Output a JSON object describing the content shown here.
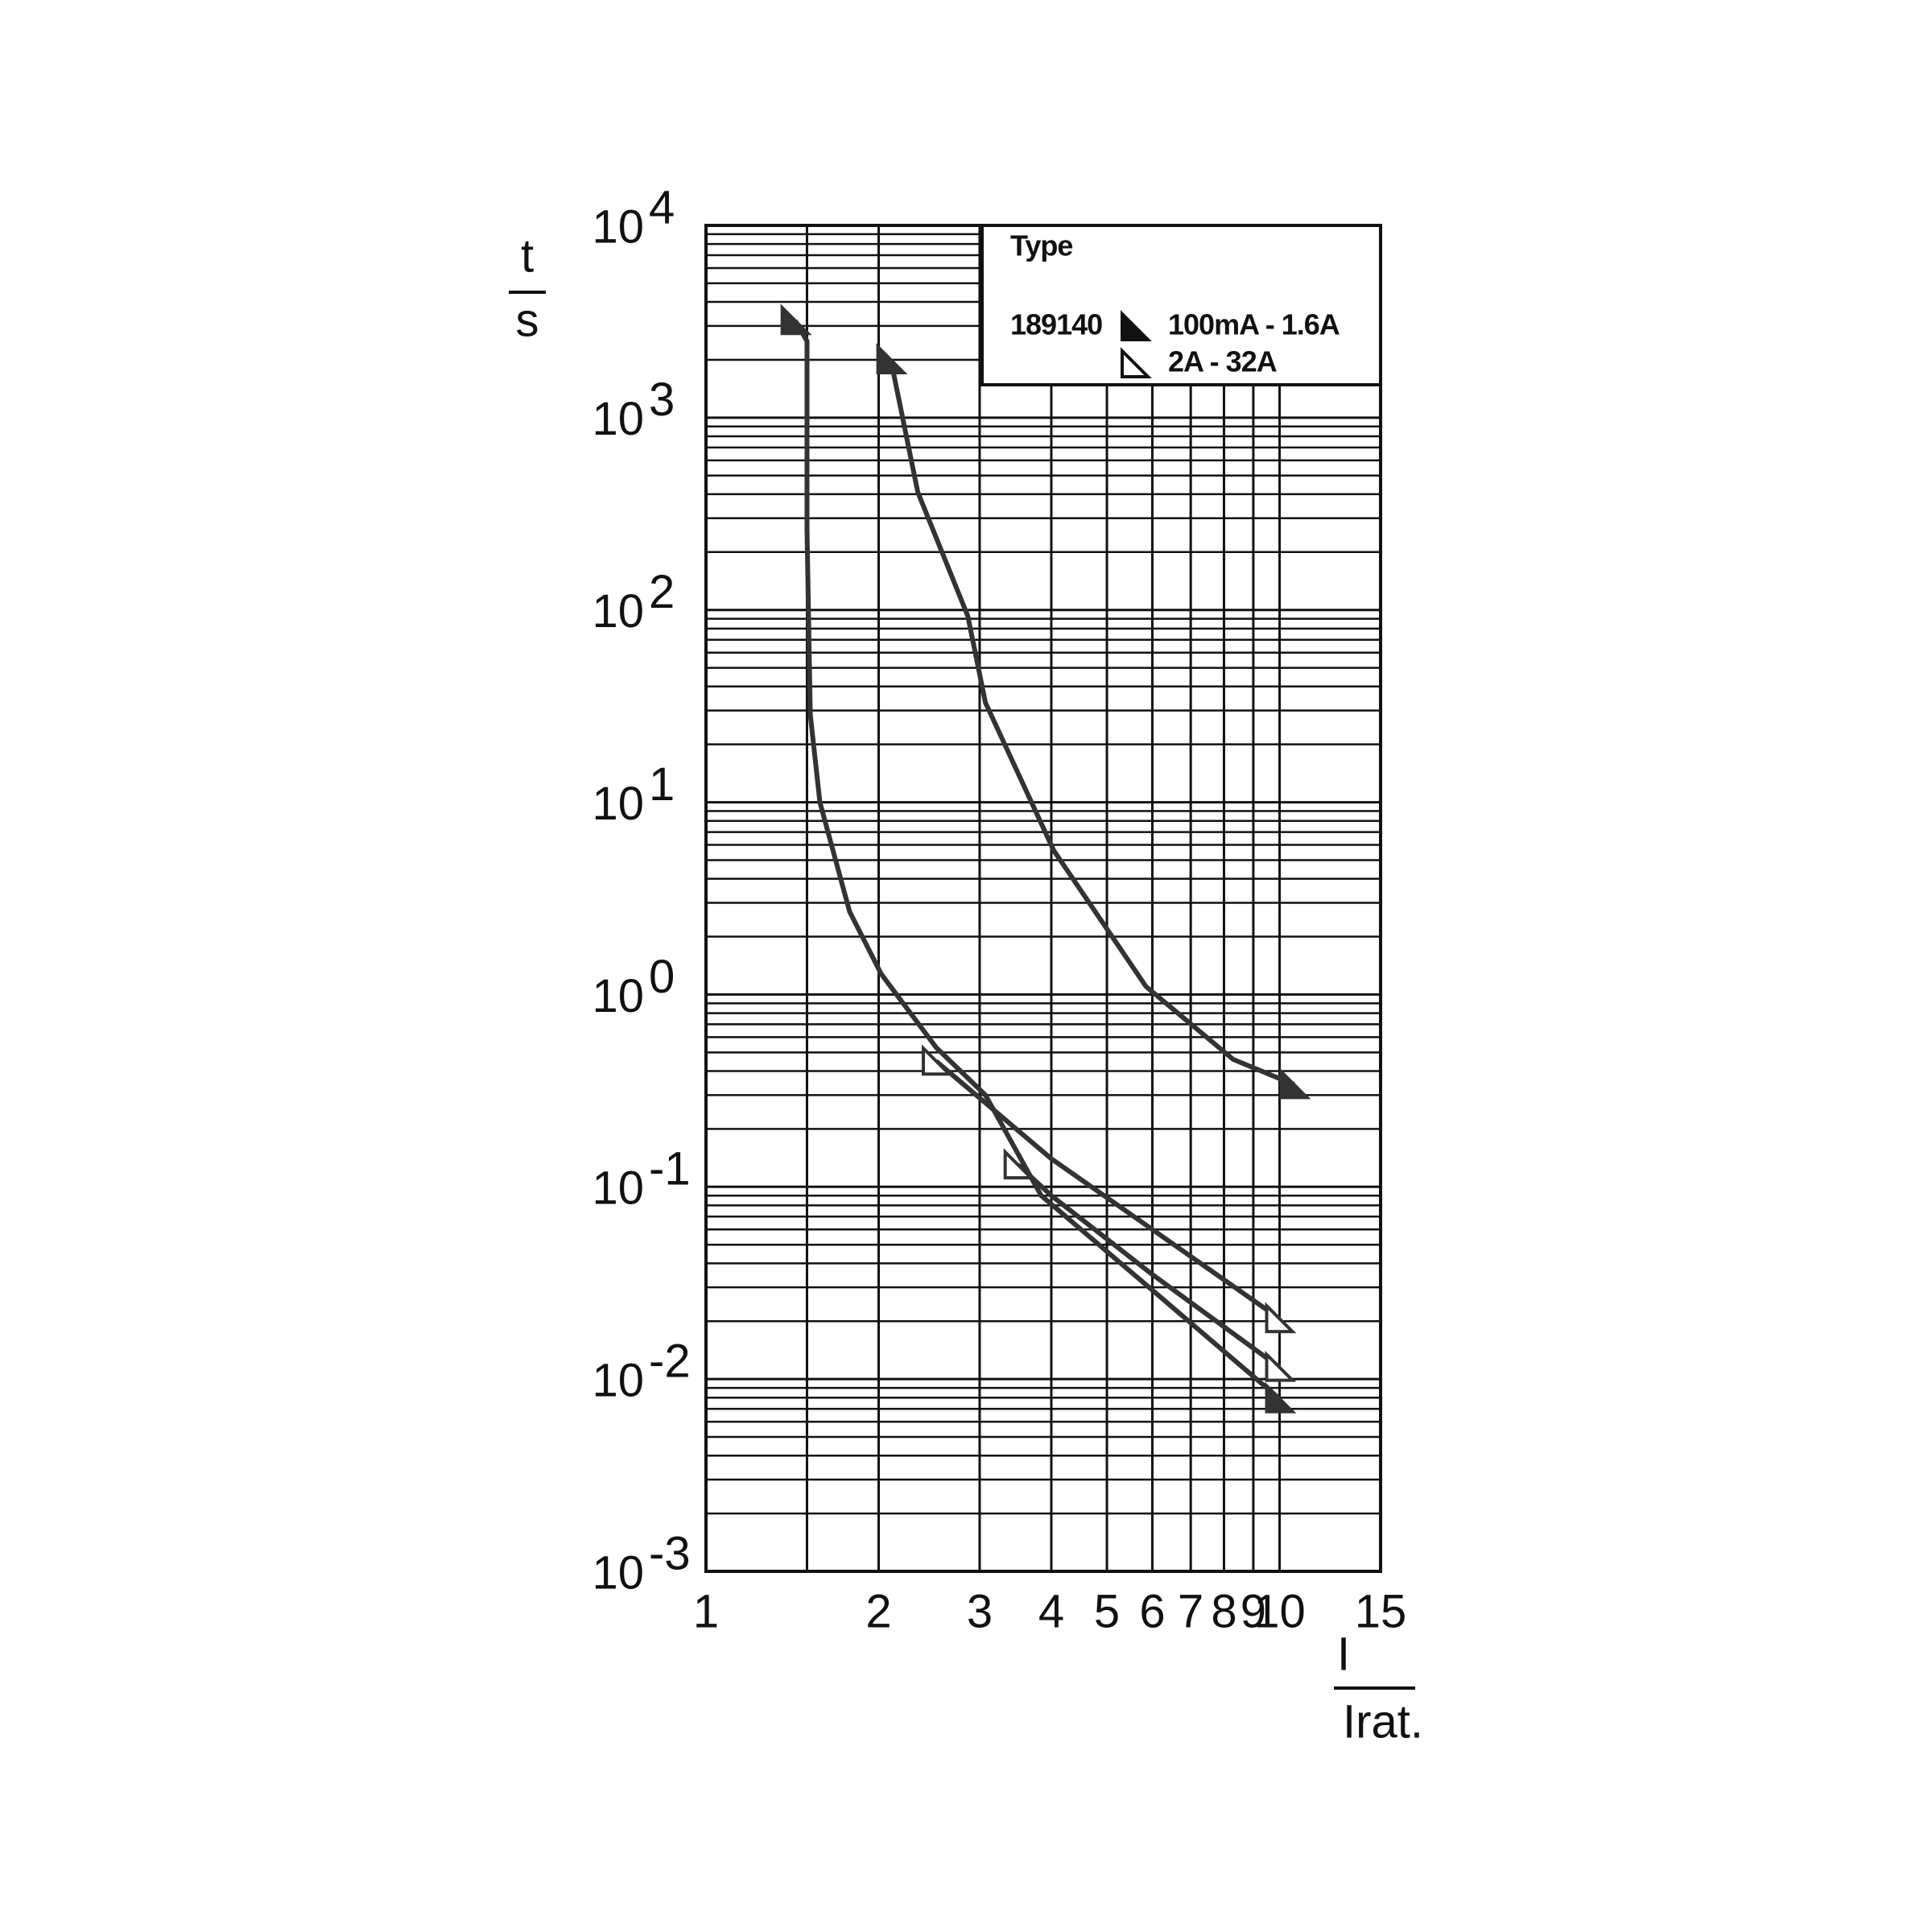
{
  "chart_data": {
    "type": "line",
    "y_label_top": "t",
    "y_label_bottom": "s",
    "x_label_top": "I",
    "x_label_bottom": "Irat.",
    "xlim": [
      1,
      15
    ],
    "xticks": [
      1,
      2,
      3,
      4,
      5,
      6,
      7,
      8,
      9,
      10,
      15
    ],
    "xminor": [
      1.5
    ],
    "ylim": [
      0.001,
      10000
    ],
    "yticks": [
      {
        "value": 10000,
        "label": "10",
        "exp": "4"
      },
      {
        "value": 1000,
        "label": "10",
        "exp": "3"
      },
      {
        "value": 100,
        "label": "10",
        "exp": "2"
      },
      {
        "value": 10,
        "label": "10",
        "exp": "1"
      },
      {
        "value": 1,
        "label": "10",
        "exp": "0"
      },
      {
        "value": 0.1,
        "label": "10",
        "exp": "-1"
      },
      {
        "value": 0.01,
        "label": "10",
        "exp": "-2"
      },
      {
        "value": 0.001,
        "label": "10",
        "exp": "-3"
      }
    ],
    "log_x": true,
    "log_y": true,
    "grid": true,
    "minor_grid": true,
    "legend": {
      "title": "Type",
      "code": "189140",
      "corner": "top-right"
    },
    "series": [
      {
        "name": "100mA - 1.6A",
        "color": "#333333",
        "marker": "filled",
        "x": [
          1.43,
          1.5,
          1.5,
          1.52,
          1.58,
          1.78,
          2.02,
          2.52,
          3.07,
          3.84,
          6,
          10,
          null,
          2.1,
          2.34,
          2.86,
          3.07,
          4.04,
          5.85,
          8.3,
          10.6
        ],
        "values": [
          3200,
          2500,
          260,
          28.5,
          10,
          2.7,
          1.28,
          0.53,
          0.3,
          0.09,
          0.029,
          0.0079,
          null,
          2000,
          410,
          93,
          33,
          5.6,
          1.1,
          0.46,
          0.34
        ]
      },
      {
        "name": "2A - 32A",
        "color": "#333333",
        "marker": "open",
        "x": [
          2.52,
          4,
          6,
          10,
          null,
          3.5,
          4,
          6,
          10
        ],
        "values": [
          0.45,
          0.14,
          0.06,
          0.0206,
          null,
          0.13,
          0.09,
          0.035,
          0.0115
        ]
      }
    ]
  }
}
